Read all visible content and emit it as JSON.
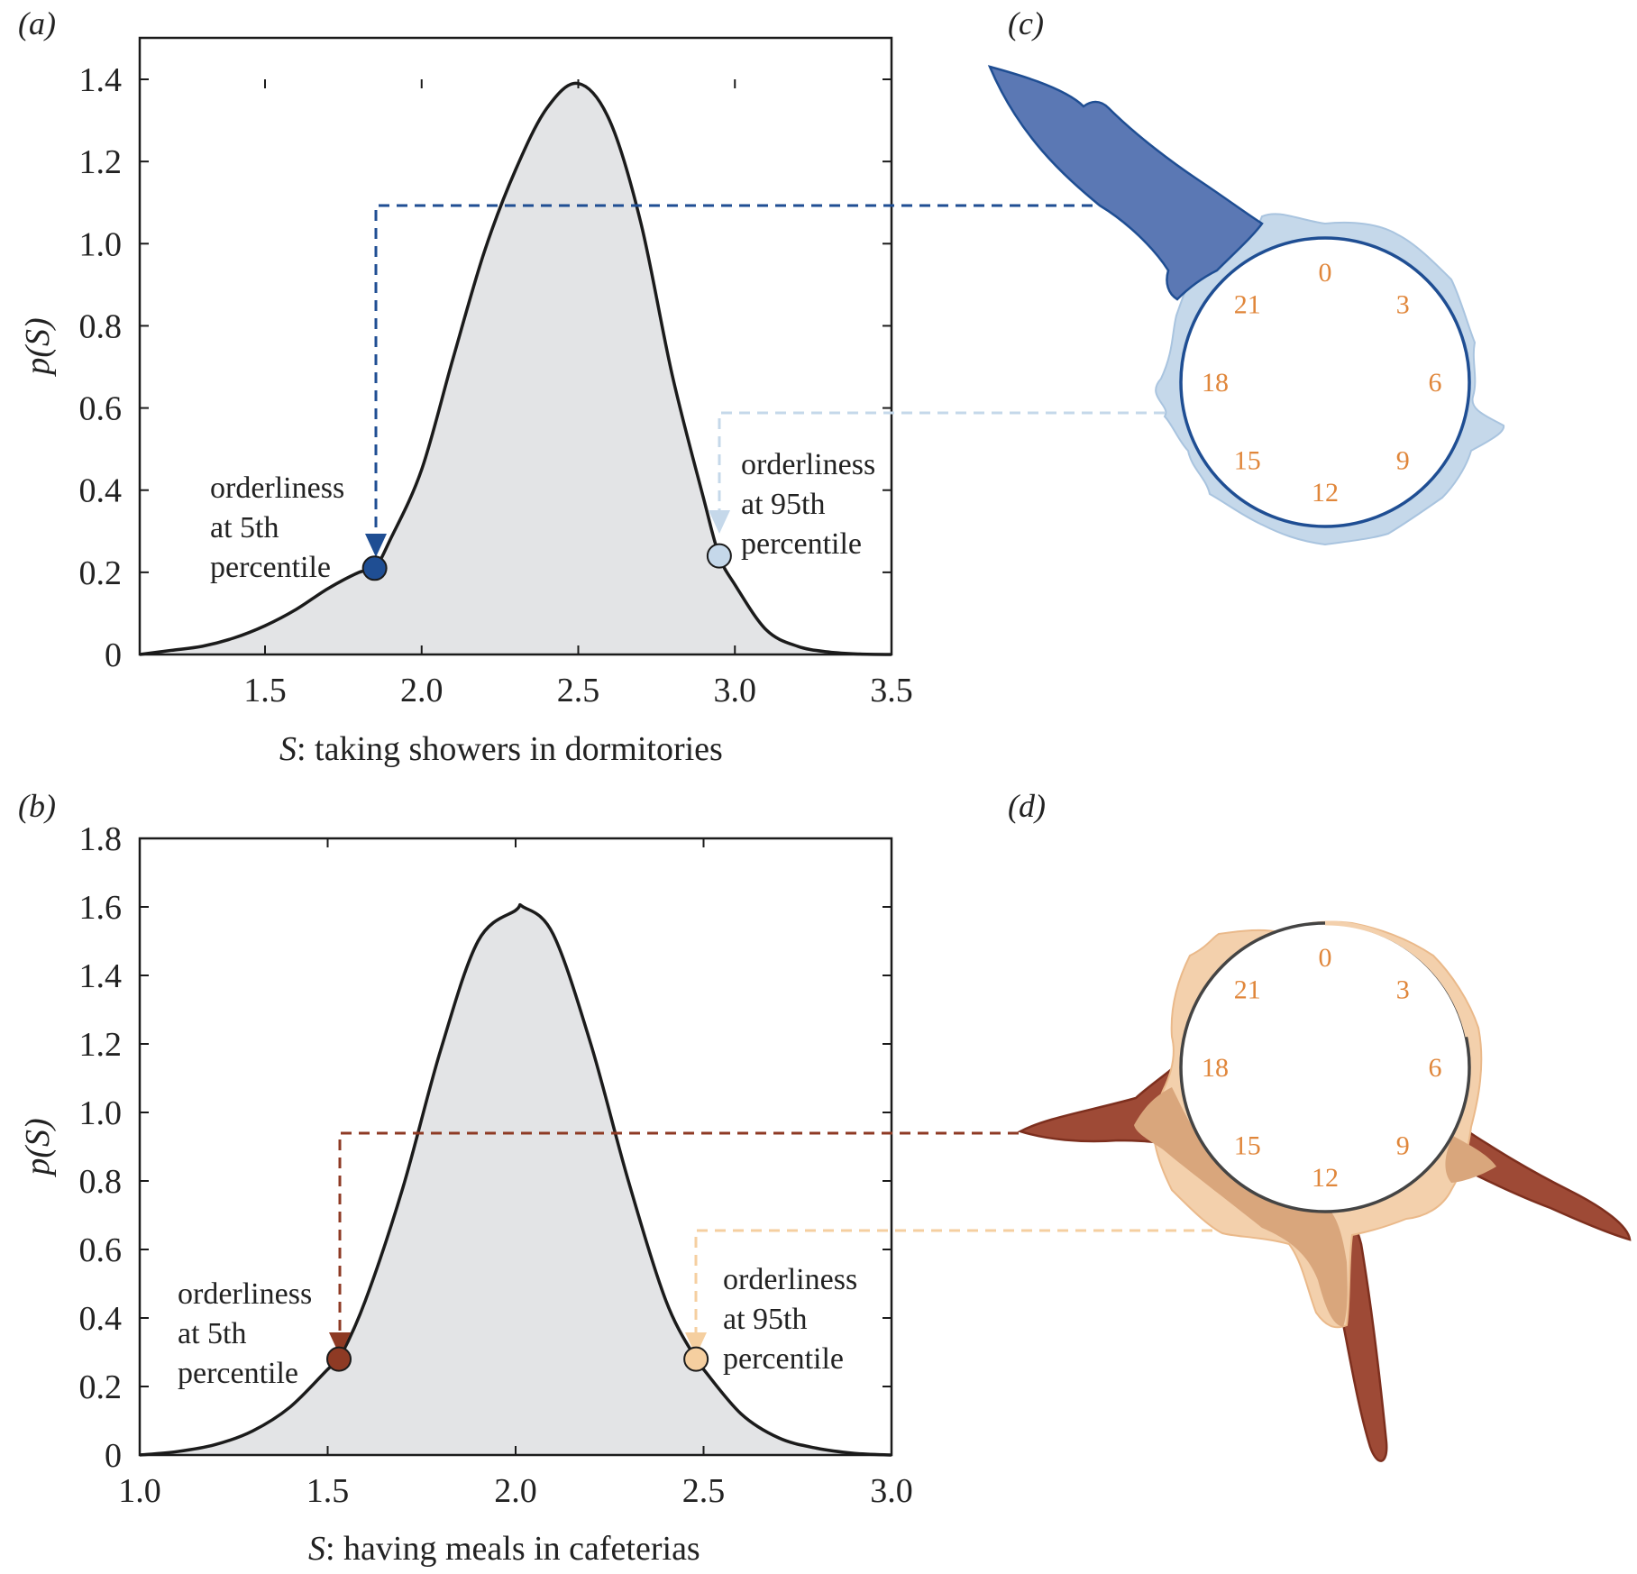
{
  "panels": {
    "a": "(a)",
    "b": "(b)",
    "c": "(c)",
    "d": "(d)"
  },
  "chart_data": [
    {
      "panel": "(a)",
      "type": "area",
      "description_of_curve": "density p(S)",
      "x": [
        1.1,
        1.2,
        1.3,
        1.4,
        1.5,
        1.6,
        1.7,
        1.8,
        1.85,
        1.9,
        2.0,
        2.1,
        2.2,
        2.3,
        2.4,
        2.5,
        2.6,
        2.7,
        2.8,
        2.9,
        2.95,
        3.0,
        3.1,
        3.2,
        3.3,
        3.4,
        3.5
      ],
      "y": [
        0.0,
        0.01,
        0.02,
        0.04,
        0.07,
        0.11,
        0.16,
        0.2,
        0.21,
        0.28,
        0.45,
        0.72,
        0.98,
        1.18,
        1.33,
        1.39,
        1.3,
        1.05,
        0.68,
        0.38,
        0.24,
        0.17,
        0.06,
        0.02,
        0.006,
        0.001,
        0.0
      ],
      "xlabel_var": "S",
      "xlabel_text": ": taking showers in dormitories",
      "ylabel": "p(S)",
      "xlim": [
        1.1,
        3.5
      ],
      "ylim": [
        0,
        1.4
      ],
      "xticks": [
        "1.5",
        "2.0",
        "2.5",
        "3.0",
        "3.5"
      ],
      "yticks": [
        "0",
        "0.2",
        "0.4",
        "0.6",
        "0.8",
        "1.0",
        "1.2",
        "1.4"
      ],
      "markers": [
        {
          "x": 1.85,
          "y": 0.21,
          "color": "#1f4e93",
          "label": [
            "orderliness",
            "at 5th",
            "percentile"
          ]
        },
        {
          "x": 2.95,
          "y": 0.24,
          "color": "#c5d8ea",
          "label": [
            "orderliness",
            "at 95th",
            "percentile"
          ]
        }
      ]
    },
    {
      "panel": "(b)",
      "type": "area",
      "description_of_curve": "density p(S)",
      "x": [
        1.0,
        1.1,
        1.2,
        1.3,
        1.4,
        1.5,
        1.53,
        1.6,
        1.7,
        1.8,
        1.9,
        2.0,
        2.02,
        2.1,
        2.2,
        2.3,
        2.4,
        2.48,
        2.5,
        2.6,
        2.7,
        2.8,
        2.9,
        3.0
      ],
      "y": [
        0.0,
        0.01,
        0.03,
        0.07,
        0.14,
        0.25,
        0.28,
        0.45,
        0.78,
        1.18,
        1.5,
        1.59,
        1.6,
        1.52,
        1.2,
        0.8,
        0.45,
        0.28,
        0.25,
        0.12,
        0.05,
        0.02,
        0.005,
        0.0
      ],
      "xlabel_var": "S",
      "xlabel_text": ": having meals in cafeterias",
      "ylabel": "p(S)",
      "xlim": [
        1.0,
        3.0
      ],
      "ylim": [
        0,
        1.8
      ],
      "xticks": [
        "1.0",
        "1.5",
        "2.0",
        "2.5",
        "3.0"
      ],
      "yticks": [
        "0",
        "0.2",
        "0.4",
        "0.6",
        "0.8",
        "1.0",
        "1.2",
        "1.4",
        "1.6",
        "1.8"
      ],
      "markers": [
        {
          "x": 1.53,
          "y": 0.28,
          "color": "#8e3a24",
          "label": [
            "orderliness",
            "at 5th",
            "percentile"
          ]
        },
        {
          "x": 2.48,
          "y": 0.28,
          "color": "#f5cfa0",
          "label": [
            "orderliness",
            "at 95th",
            "percentile"
          ]
        }
      ]
    }
  ],
  "clocks": {
    "labels": [
      "0",
      "3",
      "6",
      "9",
      "12",
      "15",
      "18",
      "21"
    ],
    "c_colors": {
      "low": "#5b78b4",
      "high": "#c5d8ea",
      "edge": "#1f4e93"
    },
    "d_colors": {
      "low": "#9e4a36",
      "high": "#f3d0ac",
      "mid": "#d9a67c"
    }
  }
}
